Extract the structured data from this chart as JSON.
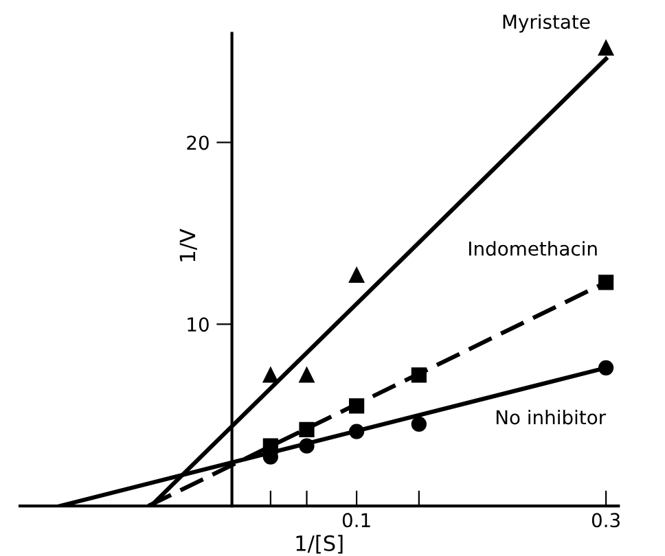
{
  "chart_data": {
    "type": "scatter",
    "xlabel": "1/[S]",
    "ylabel": "1/V",
    "xlim": [
      -0.17,
      0.31
    ],
    "ylim": [
      0,
      26
    ],
    "xticks": [
      {
        "value": 0.031,
        "label": null
      },
      {
        "value": 0.06,
        "label": null
      },
      0.1,
      {
        "value": 0.15,
        "label": null
      },
      0.3
    ],
    "yticks": [
      10,
      20
    ],
    "grid": false,
    "legend": false,
    "series": [
      {
        "name": "Myristate",
        "color": "#000000",
        "marker": "triangle",
        "x": [
          0.031,
          0.06,
          0.1,
          0.3
        ],
        "values": [
          7.2,
          7.2,
          12.7,
          25.2
        ]
      },
      {
        "name": "Indomethacin",
        "color": "#000000",
        "marker": "square",
        "x": [
          0.031,
          0.06,
          0.1,
          0.15,
          0.3
        ],
        "values": [
          3.3,
          4.2,
          5.5,
          7.2,
          12.3
        ]
      },
      {
        "name": "No inhibitor",
        "color": "#000000",
        "marker": "circle",
        "x": [
          0.031,
          0.06,
          0.1,
          0.15,
          0.3
        ],
        "values": [
          2.7,
          3.3,
          4.1,
          4.5,
          7.6
        ]
      },
      {
        "type": "line",
        "color": "#000000",
        "line_style": "solid",
        "marker": "none",
        "x": [
          -0.065,
          0.3
        ],
        "values": [
          0,
          24.6
        ]
      },
      {
        "type": "line",
        "color": "#000000",
        "line_style": "dashed",
        "marker": "none",
        "x": [
          -0.067,
          0.3
        ],
        "values": [
          0,
          12.3
        ]
      },
      {
        "type": "line",
        "color": "#000000",
        "line_style": "solid",
        "marker": "none",
        "x": [
          -0.138,
          0.3
        ],
        "values": [
          0,
          7.6
        ]
      }
    ]
  }
}
